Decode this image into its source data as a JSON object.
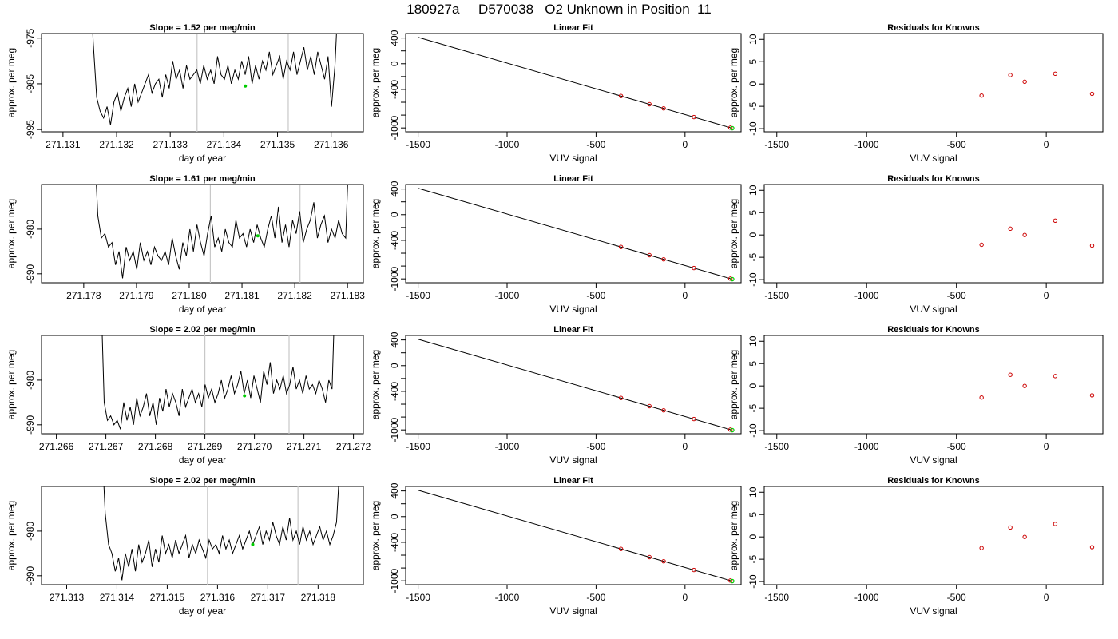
{
  "title": "180927a     D570038   O2 Unknown in Position  11",
  "colors": {
    "series_line": "#000000",
    "cursor_lines": "#c8c8c8",
    "green_marker": "#00cc00",
    "known_points": "#cc0000",
    "axes": "#000000"
  },
  "chart_data": [
    {
      "type": "line",
      "panel": "timeseries-1",
      "title": "Slope =  1.52  per meg/min",
      "xlabel": "day of year",
      "ylabel": "approx. per meg",
      "xlim": [
        271.1306,
        271.1366
      ],
      "ylim": [
        -995.5,
        -974
      ],
      "x_ticks": [
        271.131,
        271.132,
        271.133,
        271.134,
        271.135,
        271.136
      ],
      "x_tick_labels": [
        "271.131",
        "271.132",
        "271.133",
        "271.134",
        "271.135",
        "271.136"
      ],
      "y_ticks": [
        -975,
        -985,
        -995
      ],
      "y_tick_labels": [
        "-975",
        "-985",
        "-995"
      ],
      "x_range": [
        271.1315,
        271.1362
      ],
      "series": [
        -960,
        -976,
        -988,
        -991,
        -992.5,
        -990,
        -994,
        -989,
        -987,
        -991,
        -988,
        -986,
        -990,
        -985,
        -989,
        -987,
        -985,
        -983,
        -987,
        -985,
        -984,
        -988,
        -983,
        -986,
        -980,
        -984,
        -982,
        -986,
        -981,
        -984,
        -983,
        -982,
        -985,
        -981,
        -984,
        -982,
        -985,
        -979,
        -983,
        -984,
        -981,
        -985,
        -982,
        -984,
        -980,
        -983,
        -979,
        -985,
        -981,
        -984,
        -980,
        -982,
        -978,
        -983,
        -981,
        -979,
        -984,
        -980,
        -982,
        -978,
        -983,
        -980,
        -977,
        -982,
        -979,
        -983,
        -978,
        -981,
        -984,
        -979,
        -990,
        -981,
        -965,
        -950
      ],
      "cursor_x": [
        271.1335,
        271.1352
      ],
      "marker": [
        271.1344,
        -985.5
      ]
    },
    {
      "type": "line",
      "panel": "timeseries-2",
      "title": "Slope =  1.61  per meg/min",
      "xlabel": "day of year",
      "ylabel": "approx. per meg",
      "xlim": [
        271.1772,
        271.1833
      ],
      "ylim": [
        -992,
        -970
      ],
      "x_ticks": [
        271.178,
        271.179,
        271.18,
        271.181,
        271.182,
        271.183
      ],
      "x_tick_labels": [
        "271.178",
        "271.179",
        "271.180",
        "271.181",
        "271.182",
        "271.183"
      ],
      "y_ticks": [
        -980,
        -990
      ],
      "y_tick_labels": [
        "-980",
        "-990"
      ],
      "x_range": [
        271.1782,
        271.1831
      ],
      "series": [
        -960,
        -977,
        -982,
        -981,
        -984,
        -983,
        -988,
        -985,
        -991,
        -984,
        -987,
        -985,
        -989,
        -983,
        -987,
        -985,
        -988,
        -984,
        -986,
        -987,
        -985,
        -988,
        -982,
        -986,
        -989,
        -983,
        -986,
        -980,
        -985,
        -979,
        -983,
        -986,
        -981,
        -977,
        -984,
        -982,
        -985,
        -980,
        -983,
        -984,
        -978,
        -982,
        -981,
        -984,
        -980,
        -983,
        -979,
        -982,
        -984,
        -980,
        -977,
        -982,
        -975,
        -983,
        -979,
        -984,
        -978,
        -981,
        -976,
        -983,
        -980,
        -978,
        -974,
        -982,
        -979,
        -977,
        -983,
        -980,
        -982,
        -978,
        -981,
        -982,
        -960,
        -955
      ],
      "cursor_x": [
        271.1804,
        271.1821
      ],
      "marker": [
        271.1813,
        -981.5
      ]
    },
    {
      "type": "line",
      "panel": "timeseries-3",
      "title": "Slope =  2.02  per meg/min",
      "xlabel": "day of year",
      "ylabel": "approx. per meg",
      "xlim": [
        271.2657,
        271.2722
      ],
      "ylim": [
        -992,
        -970
      ],
      "x_ticks": [
        271.266,
        271.267,
        271.268,
        271.269,
        271.27,
        271.271,
        271.272
      ],
      "x_tick_labels": [
        "271.266",
        "271.267",
        "271.268",
        "271.269",
        "271.270",
        "271.271",
        "271.272"
      ],
      "y_ticks": [
        -980,
        -990
      ],
      "y_tick_labels": [
        "-980",
        "-990"
      ],
      "x_range": [
        271.2669,
        271.2717
      ],
      "series": [
        -960,
        -985,
        -989,
        -988,
        -990,
        -989,
        -991,
        -985,
        -989,
        -986,
        -990,
        -984,
        -988,
        -986,
        -983,
        -988,
        -985,
        -990,
        -984,
        -987,
        -982,
        -986,
        -983,
        -985,
        -988,
        -982,
        -986,
        -984,
        -982,
        -985,
        -983,
        -986,
        -981,
        -984,
        -982,
        -985,
        -983,
        -980,
        -984,
        -982,
        -979,
        -983,
        -981,
        -978,
        -983,
        -980,
        -984,
        -979,
        -982,
        -985,
        -978,
        -981,
        -976,
        -983,
        -980,
        -982,
        -979,
        -983,
        -981,
        -977,
        -982,
        -980,
        -983,
        -979,
        -982,
        -981,
        -983,
        -980,
        -982,
        -985,
        -980,
        -982,
        -958,
        -950
      ],
      "cursor_x": [
        271.269,
        271.2707
      ],
      "marker": [
        271.2698,
        -983.5
      ]
    },
    {
      "type": "line",
      "panel": "timeseries-4",
      "title": "Slope =  2.02  per meg/min",
      "xlabel": "day of year",
      "ylabel": "approx. per meg",
      "xlim": [
        271.3125,
        271.3189
      ],
      "ylim": [
        -992,
        -970
      ],
      "x_ticks": [
        271.313,
        271.314,
        271.315,
        271.316,
        271.317,
        271.318
      ],
      "x_tick_labels": [
        "271.313",
        "271.314",
        "271.315",
        "271.316",
        "271.317",
        "271.318"
      ],
      "y_ticks": [
        -980,
        -990
      ],
      "y_tick_labels": [
        "-980",
        "-990"
      ],
      "x_range": [
        271.3137,
        271.3185
      ],
      "series": [
        -960,
        -976,
        -983,
        -985,
        -989,
        -986,
        -991,
        -985,
        -988,
        -984,
        -989,
        -983,
        -987,
        -985,
        -982,
        -988,
        -984,
        -987,
        -981,
        -985,
        -983,
        -986,
        -982,
        -985,
        -983,
        -981,
        -986,
        -983,
        -985,
        -982,
        -984,
        -986,
        -982,
        -984,
        -983,
        -985,
        -981,
        -984,
        -982,
        -985,
        -983,
        -981,
        -984,
        -982,
        -980,
        -983,
        -981,
        -979,
        -983,
        -980,
        -982,
        -978,
        -981,
        -983,
        -979,
        -982,
        -977,
        -982,
        -980,
        -983,
        -979,
        -982,
        -980,
        -983,
        -981,
        -979,
        -982,
        -980,
        -983,
        -981,
        -978,
        -965,
        -950
      ],
      "cursor_x": [
        271.3158,
        271.3176
      ],
      "marker": [
        271.3167,
        -983
      ]
    },
    {
      "type": "scatter",
      "panel": "fit-1",
      "title": "Linear Fit",
      "xlabel": "VUV signal",
      "ylabel": "approx. per meg",
      "xlim": [
        -1570,
        315
      ],
      "ylim": [
        -1060,
        470
      ],
      "x_ticks": [
        -1500,
        -1000,
        -500,
        0
      ],
      "x_tick_labels": [
        "-1500",
        "-1000",
        "-500",
        "0"
      ],
      "y_ticks": [
        400,
        0,
        -400,
        -1000
      ],
      "y_tick_labels": [
        "400",
        "0",
        "-400",
        "-1000"
      ],
      "y_minor_ticks": [
        200,
        -200,
        -600,
        -800
      ],
      "fit_line": [
        [
          -1500,
          411
        ],
        [
          260,
          -1000
        ]
      ],
      "points": [
        [
          -360,
          -503
        ],
        [
          -200,
          -631
        ],
        [
          -120,
          -695
        ],
        [
          50,
          -831
        ],
        [
          255,
          -996
        ]
      ],
      "unknown_point": [
        265,
        -1004
      ]
    },
    {
      "type": "scatter",
      "panel": "fit-2",
      "title": "Linear Fit",
      "xlabel": "VUV signal",
      "ylabel": "approx. per meg",
      "xlim": [
        -1570,
        315
      ],
      "ylim": [
        -1060,
        470
      ],
      "x_ticks": [
        -1500,
        -1000,
        -500,
        0
      ],
      "x_tick_labels": [
        "-1500",
        "-1000",
        "-500",
        "0"
      ],
      "y_ticks": [
        400,
        0,
        -400,
        -1000
      ],
      "y_tick_labels": [
        "400",
        "0",
        "-400",
        "-1000"
      ],
      "y_minor_ticks": [
        200,
        -200,
        -600,
        -800
      ],
      "fit_line": [
        [
          -1500,
          411
        ],
        [
          260,
          -1000
        ]
      ],
      "points": [
        [
          -360,
          -503
        ],
        [
          -200,
          -631
        ],
        [
          -120,
          -695
        ],
        [
          50,
          -831
        ],
        [
          255,
          -996
        ]
      ],
      "unknown_point": [
        265,
        -1004
      ]
    },
    {
      "type": "scatter",
      "panel": "fit-3",
      "title": "Linear Fit",
      "xlabel": "VUV signal",
      "ylabel": "approx. per meg",
      "xlim": [
        -1570,
        315
      ],
      "ylim": [
        -1060,
        470
      ],
      "x_ticks": [
        -1500,
        -1000,
        -500,
        0
      ],
      "x_tick_labels": [
        "-1500",
        "-1000",
        "-500",
        "0"
      ],
      "y_ticks": [
        400,
        0,
        -400,
        -1000
      ],
      "y_tick_labels": [
        "400",
        "0",
        "-400",
        "-1000"
      ],
      "y_minor_ticks": [
        200,
        -200,
        -600,
        -800
      ],
      "fit_line": [
        [
          -1500,
          411
        ],
        [
          260,
          -1000
        ]
      ],
      "points": [
        [
          -360,
          -503
        ],
        [
          -200,
          -631
        ],
        [
          -120,
          -695
        ],
        [
          50,
          -831
        ],
        [
          255,
          -996
        ]
      ],
      "unknown_point": [
        265,
        -1004
      ]
    },
    {
      "type": "scatter",
      "panel": "fit-4",
      "title": "Linear Fit",
      "xlabel": "VUV signal",
      "ylabel": "approx. per meg",
      "xlim": [
        -1570,
        315
      ],
      "ylim": [
        -1060,
        470
      ],
      "x_ticks": [
        -1500,
        -1000,
        -500,
        0
      ],
      "x_tick_labels": [
        "-1500",
        "-1000",
        "-500",
        "0"
      ],
      "y_ticks": [
        400,
        0,
        -400,
        -1000
      ],
      "y_tick_labels": [
        "400",
        "0",
        "-400",
        "-1000"
      ],
      "y_minor_ticks": [
        200,
        -200,
        -600,
        -800
      ],
      "fit_line": [
        [
          -1500,
          411
        ],
        [
          260,
          -1000
        ]
      ],
      "points": [
        [
          -360,
          -503
        ],
        [
          -200,
          -631
        ],
        [
          -120,
          -695
        ],
        [
          50,
          -831
        ],
        [
          255,
          -996
        ]
      ],
      "unknown_point": [
        265,
        -1004
      ]
    },
    {
      "type": "scatter",
      "panel": "residuals-1",
      "title": "Residuals for Knowns",
      "xlabel": "VUV signal",
      "ylabel": "approx. per meg",
      "xlim": [
        -1570,
        315
      ],
      "ylim": [
        -10.7,
        11.3
      ],
      "x_ticks": [
        -1500,
        -1000,
        -500,
        0
      ],
      "x_tick_labels": [
        "-1500",
        "-1000",
        "-500",
        "0"
      ],
      "y_ticks": [
        10,
        5,
        0,
        -5,
        -10
      ],
      "y_tick_labels": [
        "10",
        "5",
        "0",
        "-5",
        "-10"
      ],
      "points": [
        [
          -360,
          -2.6
        ],
        [
          -200,
          2.0
        ],
        [
          -120,
          0.5
        ],
        [
          50,
          2.3
        ],
        [
          255,
          -2.2
        ]
      ]
    },
    {
      "type": "scatter",
      "panel": "residuals-2",
      "title": "Residuals for Knowns",
      "xlabel": "VUV signal",
      "ylabel": "approx. per meg",
      "xlim": [
        -1570,
        315
      ],
      "ylim": [
        -10.7,
        11.3
      ],
      "x_ticks": [
        -1500,
        -1000,
        -500,
        0
      ],
      "x_tick_labels": [
        "-1500",
        "-1000",
        "-500",
        "0"
      ],
      "y_ticks": [
        10,
        5,
        0,
        -5,
        -10
      ],
      "y_tick_labels": [
        "10",
        "5",
        "0",
        "-5",
        "-10"
      ],
      "points": [
        [
          -360,
          -2.2
        ],
        [
          -200,
          1.4
        ],
        [
          -120,
          0.0
        ],
        [
          50,
          3.2
        ],
        [
          255,
          -2.4
        ]
      ]
    },
    {
      "type": "scatter",
      "panel": "residuals-3",
      "title": "Residuals for Knowns",
      "xlabel": "VUV signal",
      "ylabel": "approx. per meg",
      "xlim": [
        -1570,
        315
      ],
      "ylim": [
        -10.7,
        11.3
      ],
      "x_ticks": [
        -1500,
        -1000,
        -500,
        0
      ],
      "x_tick_labels": [
        "-1500",
        "-1000",
        "-500",
        "0"
      ],
      "y_ticks": [
        10,
        5,
        0,
        -5,
        -10
      ],
      "y_tick_labels": [
        "10",
        "5",
        "0",
        "-5",
        "-10"
      ],
      "points": [
        [
          -360,
          -2.6
        ],
        [
          -200,
          2.5
        ],
        [
          -120,
          0.0
        ],
        [
          50,
          2.2
        ],
        [
          255,
          -2.1
        ]
      ]
    },
    {
      "type": "scatter",
      "panel": "residuals-4",
      "title": "Residuals for Knowns",
      "xlabel": "VUV signal",
      "ylabel": "approx. per meg",
      "xlim": [
        -1570,
        315
      ],
      "ylim": [
        -10.7,
        11.3
      ],
      "x_ticks": [
        -1500,
        -1000,
        -500,
        0
      ],
      "x_tick_labels": [
        "-1500",
        "-1000",
        "-500",
        "0"
      ],
      "y_ticks": [
        10,
        5,
        0,
        -5,
        -10
      ],
      "y_tick_labels": [
        "10",
        "5",
        "0",
        "-5",
        "-10"
      ],
      "points": [
        [
          -360,
          -2.5
        ],
        [
          -200,
          2.1
        ],
        [
          -120,
          0.0
        ],
        [
          50,
          2.9
        ],
        [
          255,
          -2.3
        ]
      ]
    }
  ]
}
